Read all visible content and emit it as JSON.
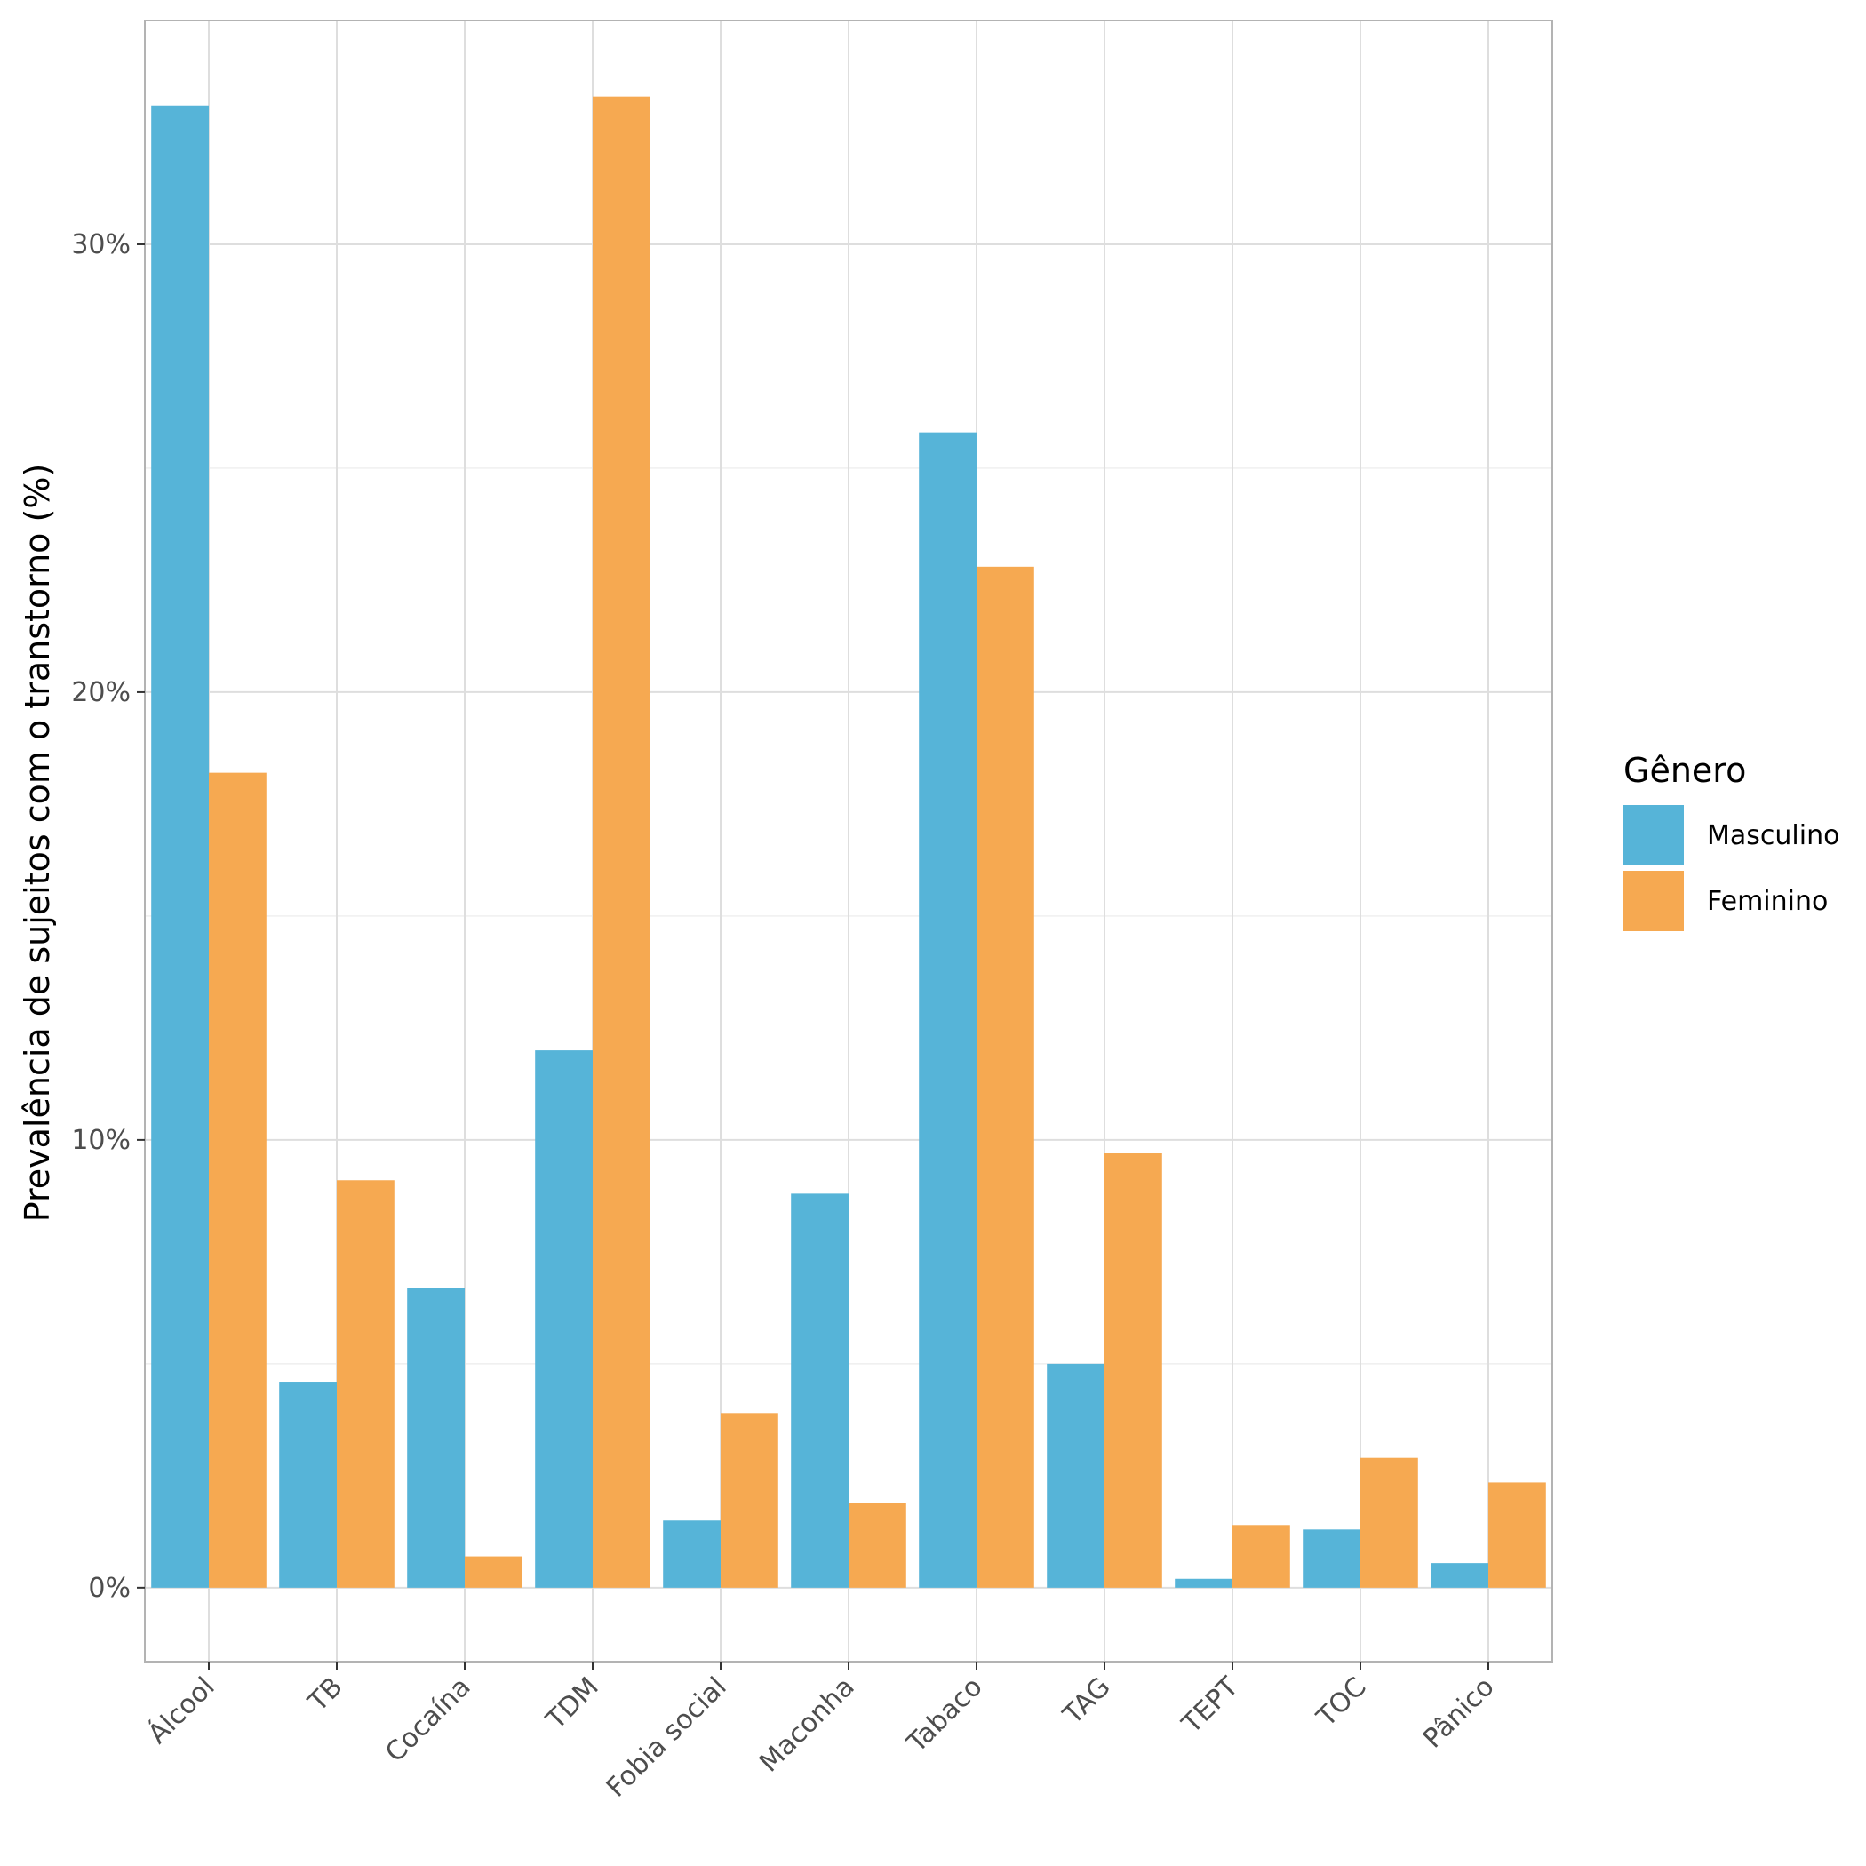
{
  "chart_data": {
    "type": "bar",
    "title": "",
    "xlabel": "",
    "ylabel": "Prevalência de sujeitos com o transtorno (%)",
    "ylim": [
      -1.65,
      35.0
    ],
    "yticks": [
      {
        "value": 0,
        "label": "0%"
      },
      {
        "value": 10,
        "label": "10%"
      },
      {
        "value": 20,
        "label": "20%"
      },
      {
        "value": 30,
        "label": "30%"
      }
    ],
    "y_minor_ticks": [
      5,
      15,
      25
    ],
    "grid": true,
    "legend_position": "right",
    "legend_title": "Gênero",
    "categories": [
      "Álcool",
      "TB",
      "Cocaína",
      "TDM",
      "Fobia social",
      "Maconha",
      "Tabaco",
      "TAG",
      "TEPT",
      "TOC",
      "Pânico"
    ],
    "series": [
      {
        "name": "Masculino",
        "color": "#56B4D8",
        "values": [
          33.1,
          4.6,
          6.7,
          12.0,
          1.5,
          8.8,
          25.8,
          5.0,
          0.2,
          1.3,
          0.55
        ]
      },
      {
        "name": "Feminino",
        "color": "#F6A951",
        "values": [
          18.2,
          9.1,
          0.7,
          33.3,
          3.9,
          1.9,
          22.8,
          9.7,
          1.4,
          2.9,
          2.35
        ]
      }
    ]
  }
}
